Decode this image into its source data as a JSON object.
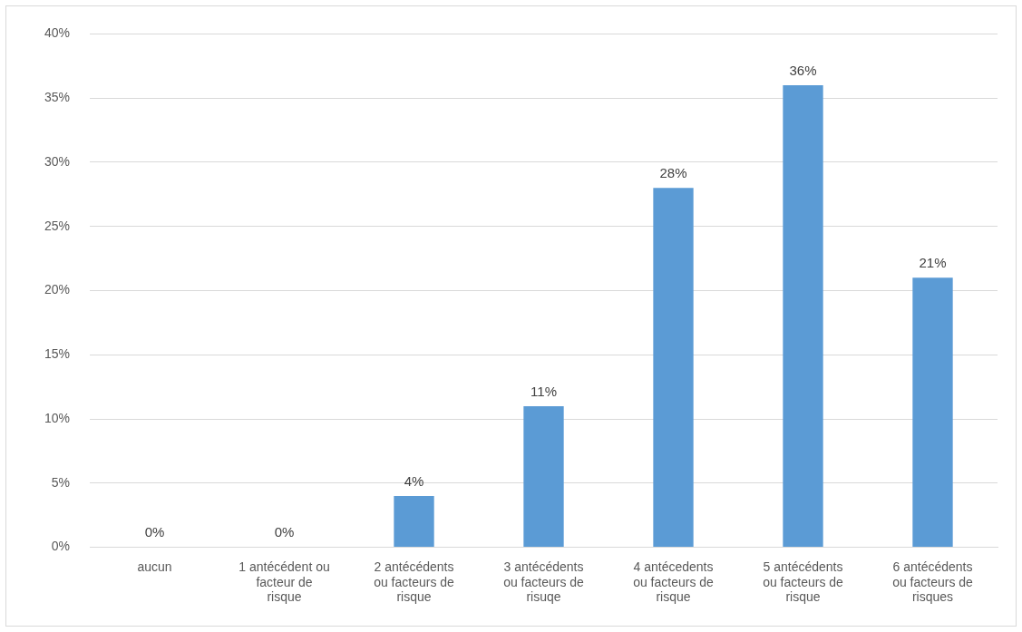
{
  "chart_data": {
    "type": "bar",
    "categories": [
      "aucun",
      "1 antécédent ou facteur de risque",
      "2 antécédents ou facteurs de risque",
      "3 antécédents ou facteurs de risuqe",
      "4 antécedents ou facteurs de risque",
      "5 antécédents ou facteurs de risque",
      "6 antécédents ou facteurs de risques"
    ],
    "values": [
      0,
      0,
      4,
      11,
      28,
      36,
      21
    ],
    "value_labels": [
      "0%",
      "0%",
      "4%",
      "11%",
      "28%",
      "36%",
      "21%"
    ],
    "color": "#5b9bd5",
    "ylim": [
      0,
      40
    ],
    "yticks": [
      {
        "value": 0,
        "label": "0%"
      },
      {
        "value": 5,
        "label": "5%"
      },
      {
        "value": 10,
        "label": "10%"
      },
      {
        "value": 15,
        "label": "15%"
      },
      {
        "value": 20,
        "label": "20%"
      },
      {
        "value": 25,
        "label": "25%"
      },
      {
        "value": 30,
        "label": "30%"
      },
      {
        "value": 35,
        "label": "35%"
      },
      {
        "value": 40,
        "label": "40%"
      }
    ],
    "grid": "y",
    "legend": false
  }
}
